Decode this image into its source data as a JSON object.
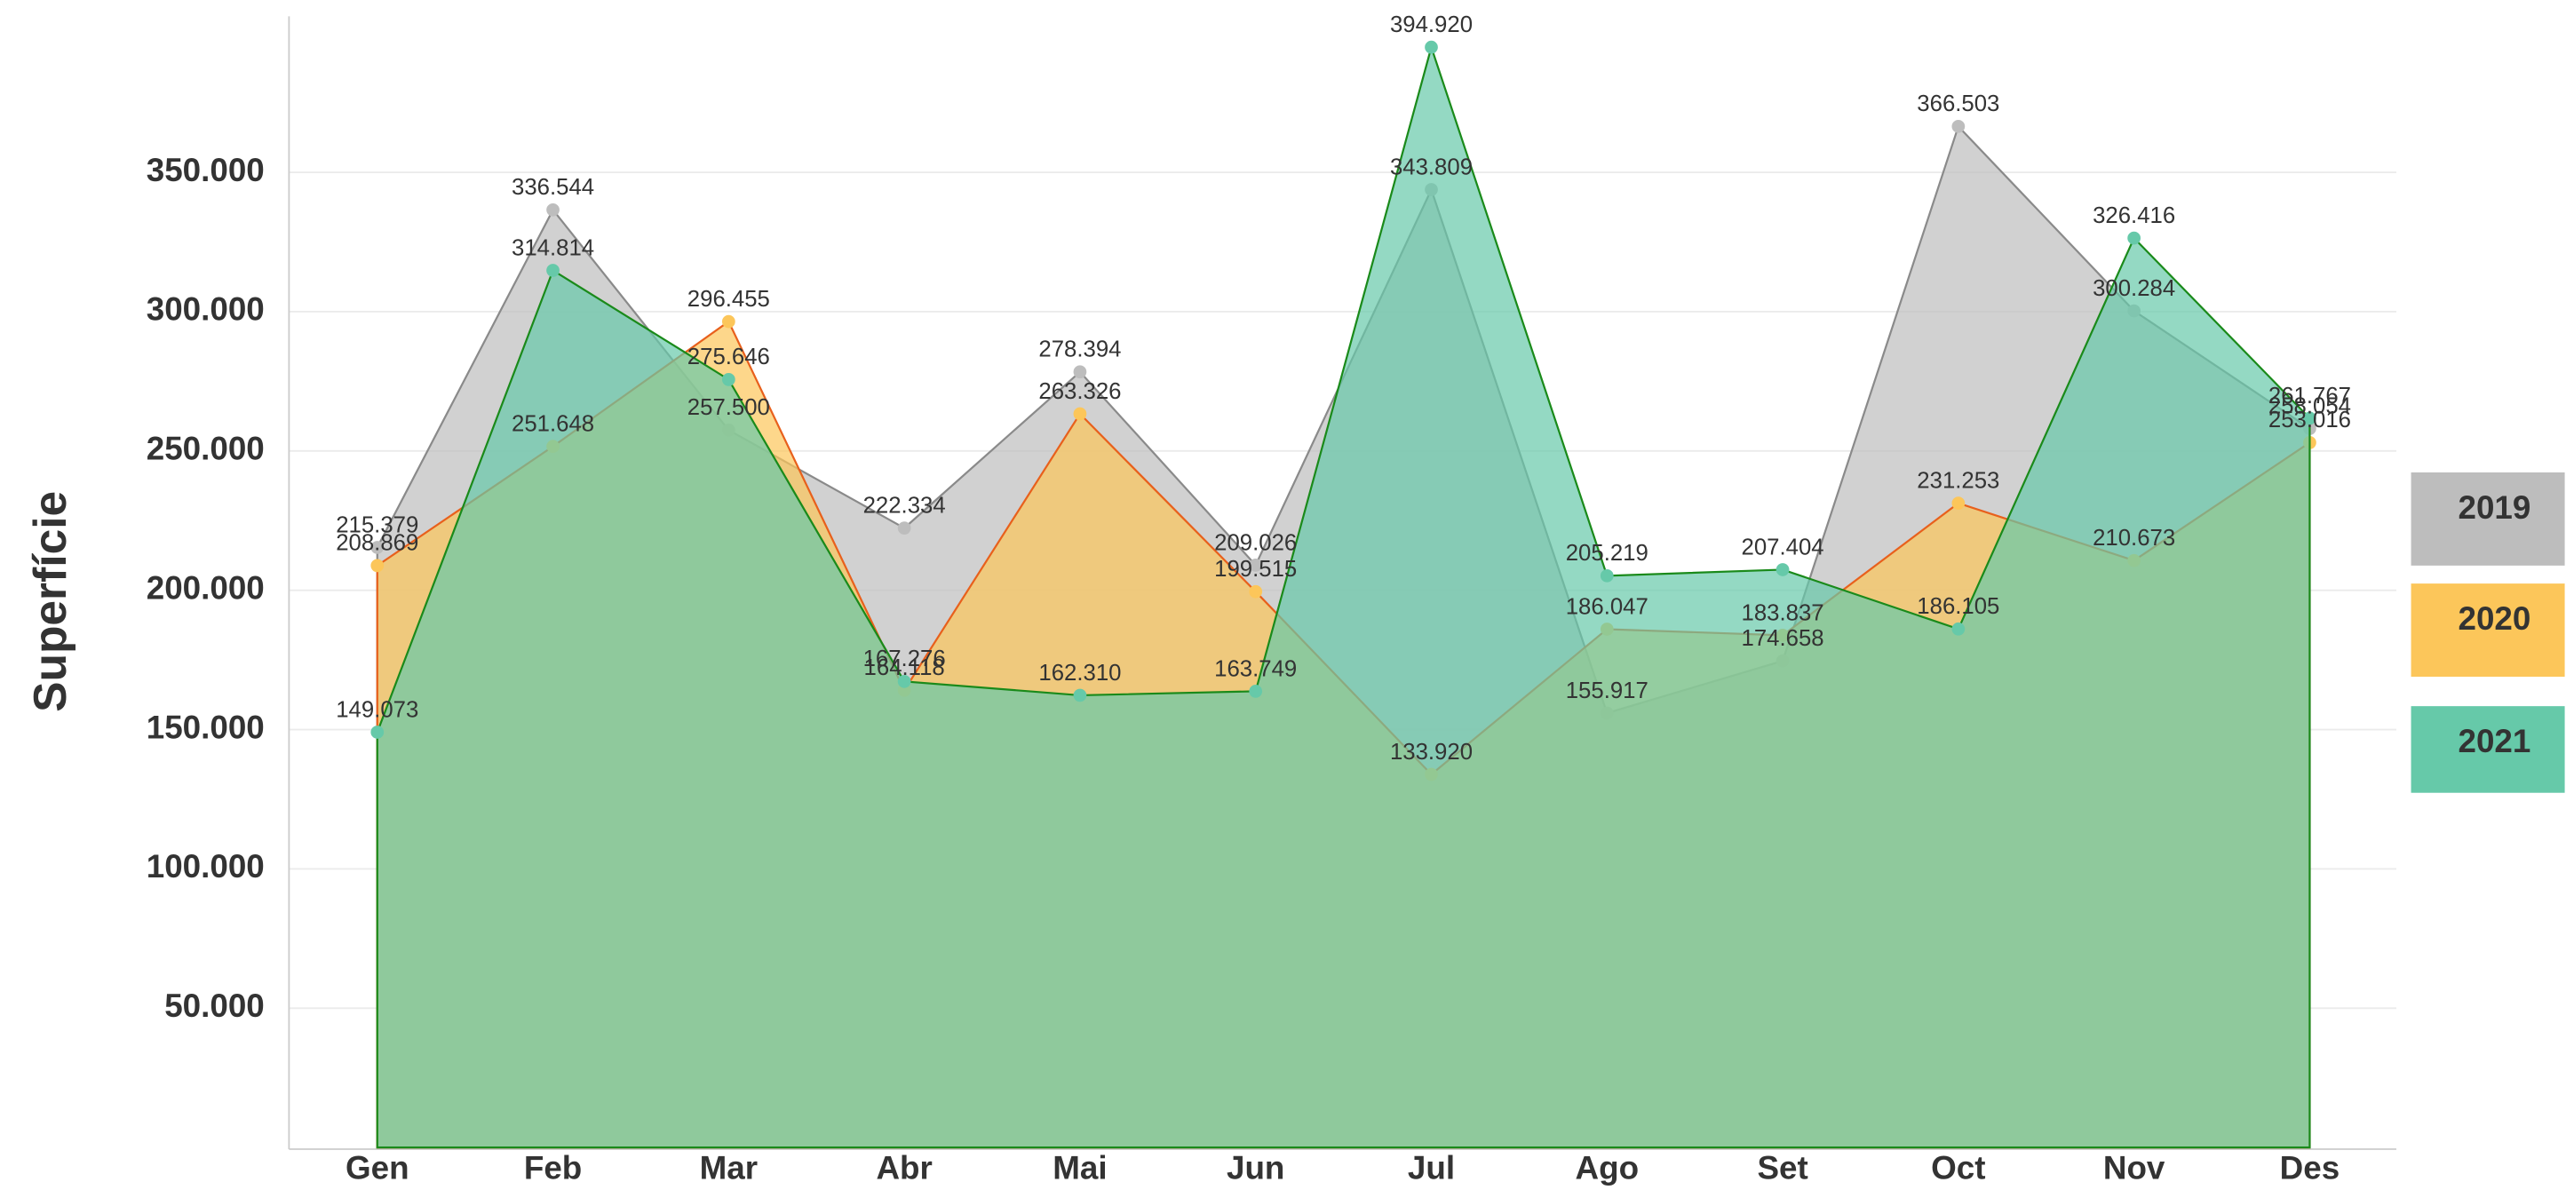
{
  "chart_data": {
    "type": "area",
    "ylabel": "Superfície",
    "categories": [
      "Gen",
      "Feb",
      "Mar",
      "Abr",
      "Mai",
      "Jun",
      "Jul",
      "Ago",
      "Set",
      "Oct",
      "Nov",
      "Des"
    ],
    "series": [
      {
        "name": "2019",
        "color": "#bdbdbd",
        "line_color": "#8a8a8a",
        "values": [
          215.379,
          336.544,
          257.5,
          222.334,
          278.394,
          209.026,
          343.809,
          155.917,
          174.658,
          366.503,
          300.284,
          258.054
        ],
        "value_labels": [
          "215.379",
          "336.544",
          "257.500",
          "222.334",
          "278.394",
          "209.026",
          "343.809",
          "155.917",
          "174.658",
          "366.503",
          "300.284",
          "258.054"
        ]
      },
      {
        "name": "2020",
        "color": "#fcc65a",
        "line_color": "#e8601c",
        "values": [
          208.869,
          251.648,
          296.455,
          164.118,
          263.326,
          199.515,
          133.92,
          186.047,
          183.837,
          231.253,
          210.673,
          253.016
        ],
        "value_labels": [
          "208.869",
          "251.648",
          "296.455",
          "164.118",
          "263.326",
          "199.515",
          "133.920",
          "186.047",
          "183.837",
          "231.253",
          "210.673",
          "253.016"
        ]
      },
      {
        "name": "2021",
        "color": "#66c9a9",
        "line_color": "#1a8a1a",
        "values": [
          149.073,
          314.814,
          275.646,
          167.276,
          162.31,
          163.749,
          394.92,
          205.219,
          207.404,
          186.105,
          326.416,
          261.767
        ],
        "value_labels": [
          "149.073",
          "314.814",
          "275.646",
          "167.276",
          "162.310",
          "163.749",
          "394.920",
          "205.219",
          "207.404",
          "186.105",
          "326.416",
          "261.767"
        ]
      }
    ],
    "ylim": [
      0,
      406
    ],
    "yticks": [
      {
        "value": 50,
        "label": "50.000"
      },
      {
        "value": 100,
        "label": "100.000"
      },
      {
        "value": 150,
        "label": "150.000"
      },
      {
        "value": 200,
        "label": "200.000"
      },
      {
        "value": 250,
        "label": "250.000"
      },
      {
        "value": 300,
        "label": "300.000"
      },
      {
        "value": 350,
        "label": "350.000"
      }
    ],
    "grid": true,
    "legend": "right"
  }
}
